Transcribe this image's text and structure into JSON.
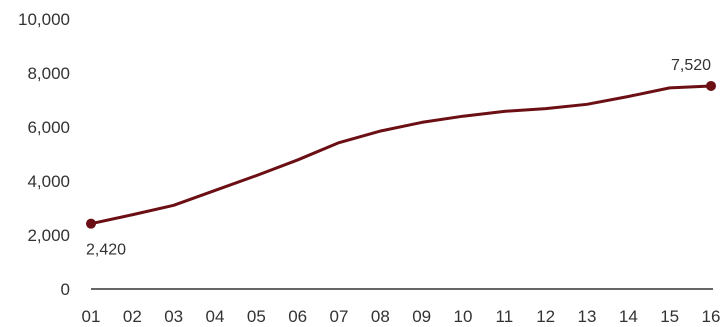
{
  "chart_data": {
    "type": "line",
    "title": "",
    "xlabel": "",
    "ylabel": "",
    "x": [
      "01",
      "02",
      "03",
      "04",
      "05",
      "06",
      "07",
      "08",
      "09",
      "10",
      "11",
      "12",
      "13",
      "14",
      "15",
      "16"
    ],
    "series": [
      {
        "values": [
          2420,
          2750,
          3100,
          3650,
          4200,
          4780,
          5420,
          5850,
          6170,
          6400,
          6580,
          6680,
          6840,
          7130,
          7450,
          7520
        ],
        "color": "#6b0f14"
      }
    ],
    "ylim": [
      0,
      10000
    ],
    "yticks": [
      0,
      2000,
      4000,
      6000,
      8000,
      10000
    ],
    "ytick_labels": [
      "0",
      "2,000",
      "4,000",
      "6,000",
      "8,000",
      "10,000"
    ],
    "annotations": [
      {
        "index": 0,
        "text": "2,420"
      },
      {
        "index": 15,
        "text": "7,520"
      }
    ],
    "grid": false,
    "legend": "none",
    "axis_color": "#333333"
  }
}
